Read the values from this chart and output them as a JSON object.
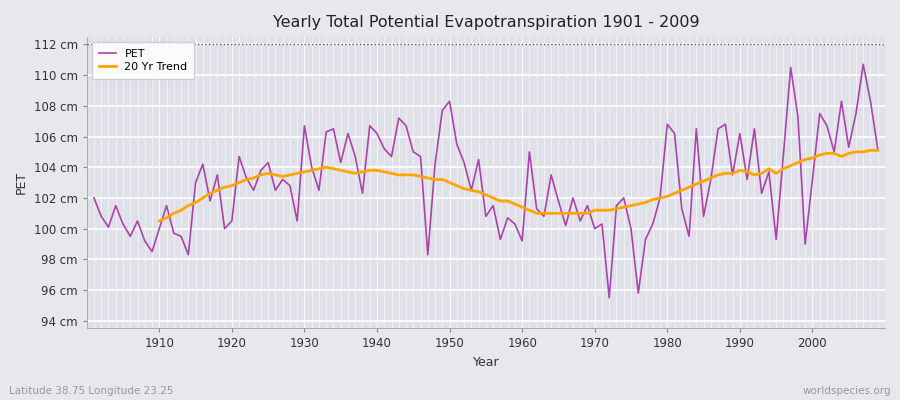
{
  "title": "Yearly Total Potential Evapotranspiration 1901 - 2009",
  "xlabel": "Year",
  "ylabel": "PET",
  "subtitle_left": "Latitude 38.75 Longitude 23.25",
  "subtitle_right": "worldspecies.org",
  "pet_color": "#AA44AA",
  "trend_color": "#FFA500",
  "background_color": "#E8E8EC",
  "plot_bg_color": "#E0E0E8",
  "ylim": [
    93.5,
    112.5
  ],
  "dotted_line_y": 112,
  "years": [
    1901,
    1902,
    1903,
    1904,
    1905,
    1906,
    1907,
    1908,
    1909,
    1910,
    1911,
    1912,
    1913,
    1914,
    1915,
    1916,
    1917,
    1918,
    1919,
    1920,
    1921,
    1922,
    1923,
    1924,
    1925,
    1926,
    1927,
    1928,
    1929,
    1930,
    1931,
    1932,
    1933,
    1934,
    1935,
    1936,
    1937,
    1938,
    1939,
    1940,
    1941,
    1942,
    1943,
    1944,
    1945,
    1946,
    1947,
    1948,
    1949,
    1950,
    1951,
    1952,
    1953,
    1954,
    1955,
    1956,
    1957,
    1958,
    1959,
    1960,
    1961,
    1962,
    1963,
    1964,
    1965,
    1966,
    1967,
    1968,
    1969,
    1970,
    1971,
    1972,
    1973,
    1974,
    1975,
    1976,
    1977,
    1978,
    1979,
    1980,
    1981,
    1982,
    1983,
    1984,
    1985,
    1986,
    1987,
    1988,
    1989,
    1990,
    1991,
    1992,
    1993,
    1994,
    1995,
    1996,
    1997,
    1998,
    1999,
    2000,
    2001,
    2002,
    2003,
    2004,
    2005,
    2006,
    2007,
    2008,
    2009
  ],
  "pet_values": [
    102.0,
    100.8,
    100.1,
    101.5,
    100.3,
    99.5,
    100.5,
    99.2,
    98.5,
    100.0,
    101.5,
    99.7,
    99.5,
    98.3,
    103.0,
    104.2,
    101.8,
    103.5,
    100.0,
    100.5,
    104.7,
    103.3,
    102.5,
    103.8,
    104.3,
    102.5,
    103.2,
    102.8,
    100.5,
    106.7,
    104.0,
    102.5,
    106.3,
    106.5,
    104.3,
    106.2,
    104.7,
    102.3,
    106.7,
    106.2,
    105.2,
    104.7,
    107.2,
    106.7,
    105.0,
    104.7,
    98.3,
    104.2,
    107.7,
    108.3,
    105.5,
    104.3,
    102.5,
    104.5,
    100.8,
    101.5,
    99.3,
    100.7,
    100.3,
    99.2,
    105.0,
    101.3,
    100.8,
    103.5,
    101.8,
    100.2,
    102.0,
    100.5,
    101.5,
    100.0,
    100.3,
    95.5,
    101.5,
    102.0,
    100.0,
    95.8,
    99.3,
    100.3,
    102.0,
    106.8,
    106.2,
    101.3,
    99.5,
    106.5,
    100.8,
    103.2,
    106.5,
    106.8,
    103.5,
    106.2,
    103.2,
    106.5,
    102.3,
    103.7,
    99.3,
    104.8,
    110.5,
    107.3,
    99.0,
    103.2,
    107.5,
    106.7,
    105.0,
    108.3,
    105.3,
    107.5,
    110.7,
    108.3,
    105.2
  ],
  "trend_years": [
    1910,
    1911,
    1912,
    1913,
    1914,
    1915,
    1916,
    1917,
    1918,
    1919,
    1920,
    1921,
    1922,
    1923,
    1924,
    1925,
    1926,
    1927,
    1928,
    1929,
    1930,
    1931,
    1932,
    1933,
    1934,
    1935,
    1936,
    1937,
    1938,
    1939,
    1940,
    1941,
    1942,
    1943,
    1944,
    1945,
    1946,
    1947,
    1948,
    1949,
    1950,
    1951,
    1952,
    1953,
    1954,
    1955,
    1956,
    1957,
    1958,
    1959,
    1960,
    1961,
    1962,
    1963,
    1964,
    1965,
    1966,
    1967,
    1968,
    1969,
    1970,
    1971,
    1972,
    1973,
    1974,
    1975,
    1976,
    1977,
    1978,
    1979,
    1980,
    1981,
    1982,
    1983,
    1984,
    1985,
    1986,
    1987,
    1988,
    1989,
    1990,
    1991,
    1992,
    1993,
    1994,
    1995,
    1996,
    1997,
    1998,
    1999,
    2000,
    2001,
    2002,
    2003,
    2004,
    2005,
    2006,
    2007,
    2008,
    2009
  ],
  "trend_values": [
    100.5,
    100.7,
    101.0,
    101.2,
    101.5,
    101.7,
    102.0,
    102.3,
    102.5,
    102.7,
    102.8,
    103.0,
    103.2,
    103.3,
    103.5,
    103.6,
    103.5,
    103.4,
    103.5,
    103.6,
    103.7,
    103.8,
    103.9,
    104.0,
    103.9,
    103.8,
    103.7,
    103.6,
    103.7,
    103.8,
    103.8,
    103.7,
    103.6,
    103.5,
    103.5,
    103.5,
    103.4,
    103.3,
    103.2,
    103.2,
    103.0,
    102.8,
    102.6,
    102.5,
    102.4,
    102.2,
    102.0,
    101.8,
    101.8,
    101.6,
    101.4,
    101.2,
    101.0,
    101.0,
    101.0,
    101.0,
    101.0,
    101.0,
    101.0,
    101.0,
    101.2,
    101.2,
    101.2,
    101.3,
    101.4,
    101.5,
    101.6,
    101.7,
    101.9,
    102.0,
    102.1,
    102.3,
    102.5,
    102.7,
    102.9,
    103.1,
    103.3,
    103.5,
    103.6,
    103.6,
    103.8,
    103.7,
    103.5,
    103.6,
    103.9,
    103.6,
    103.9,
    104.1,
    104.3,
    104.5,
    104.6,
    104.8,
    104.9,
    104.9,
    104.7,
    104.9,
    105.0,
    105.0,
    105.1,
    105.1
  ]
}
